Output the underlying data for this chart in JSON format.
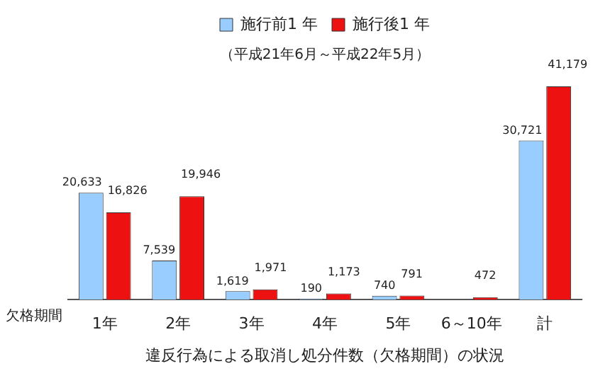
{
  "chart_data": {
    "type": "bar",
    "title": "違反行為による取消し処分件数（欠格期間）の状況",
    "xlabel": "欠格期間",
    "annotations": [
      "（平成21年6月～平成22年5月）"
    ],
    "categories": [
      "1年",
      "2年",
      "3年",
      "4年",
      "5年",
      "6～10年",
      "計"
    ],
    "series": [
      {
        "name": "施行前1 年",
        "color": "#99ccff",
        "values": [
          20633,
          7539,
          1619,
          190,
          740,
          null,
          30721
        ],
        "value_labels": [
          "20,633",
          "7,539",
          "1,619",
          "190",
          "740",
          null,
          "30,721"
        ]
      },
      {
        "name": "施行後1 年",
        "color": "#ee1111",
        "values": [
          16826,
          19946,
          1971,
          1173,
          791,
          472,
          41179
        ],
        "value_labels": [
          "16,826",
          "19,946",
          "1,971",
          "1,173",
          "791",
          "472",
          "41,179"
        ]
      }
    ],
    "legend": "top",
    "grid": false
  }
}
